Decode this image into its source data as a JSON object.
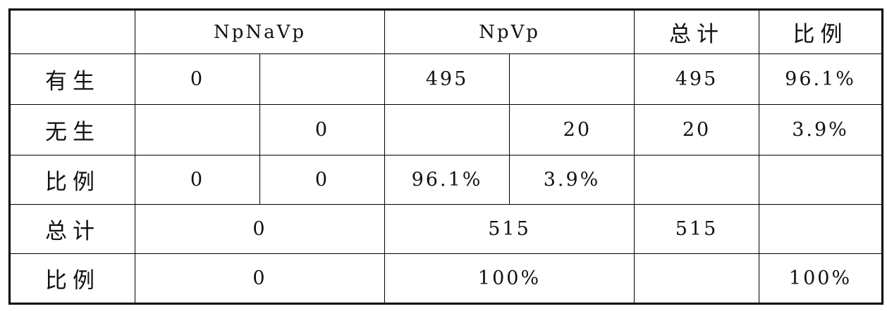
{
  "table": {
    "header": [
      "NpNaVp",
      "NpVp",
      "总计",
      "比例"
    ],
    "rows": [
      {
        "label": "有生",
        "cells": [
          "0",
          "495",
          "495",
          "96.1%"
        ]
      },
      {
        "label": "无生",
        "cells": [
          "0",
          "20",
          "20",
          "3.9%"
        ]
      },
      {
        "label": "比例",
        "cells": [
          "0",
          "0",
          "96.1%",
          "3.9%"
        ]
      },
      {
        "label": "总计",
        "cells": [
          "0",
          "515",
          "515"
        ]
      },
      {
        "label": "比例",
        "cells": [
          "0",
          "100%",
          "100%"
        ]
      }
    ]
  }
}
